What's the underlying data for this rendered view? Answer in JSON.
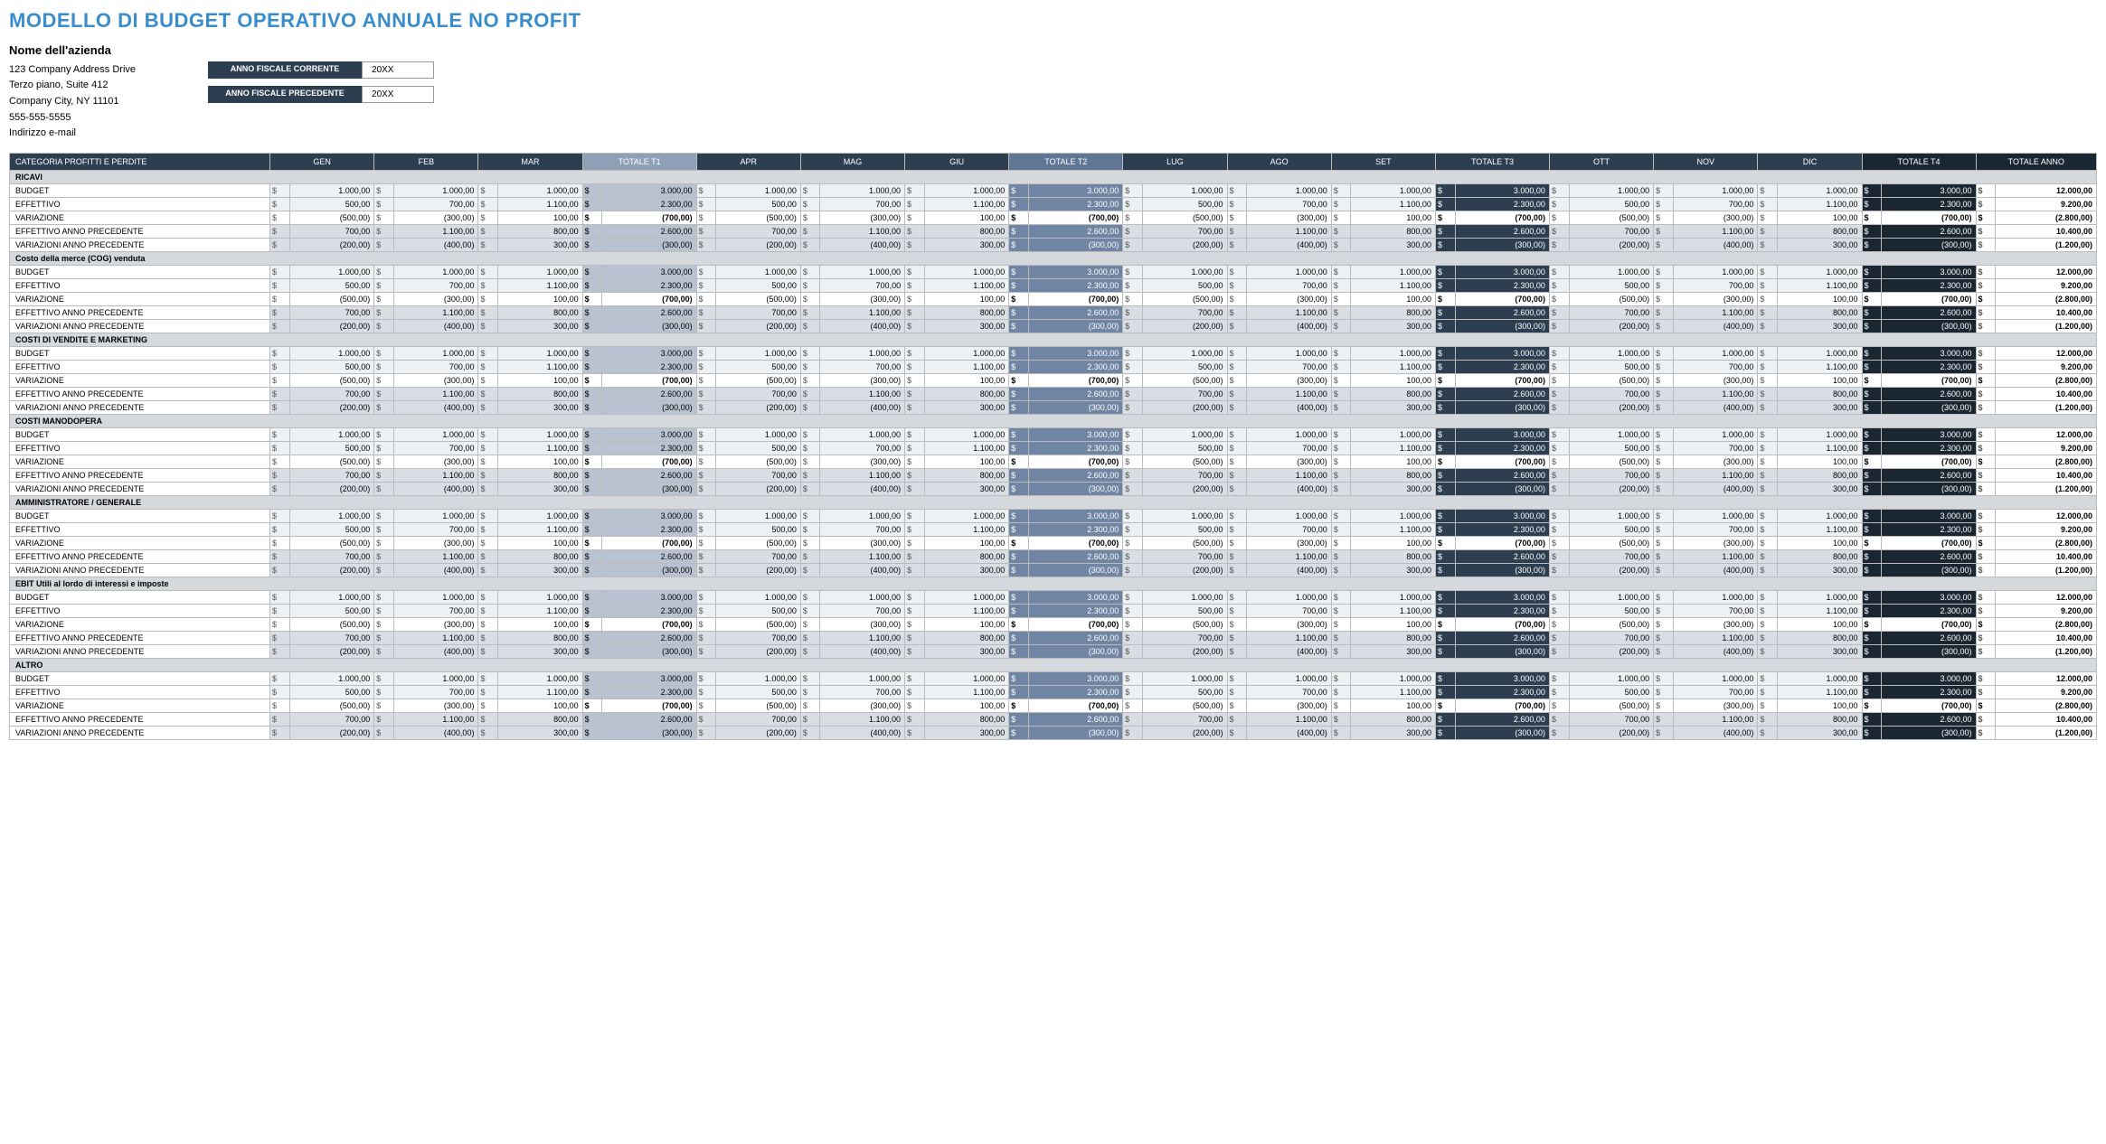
{
  "title": "MODELLO DI BUDGET OPERATIVO ANNUALE NO PROFIT",
  "company": {
    "name": "Nome dell'azienda",
    "addr1": "123 Company Address Drive",
    "addr2": "Terzo piano, Suite 412",
    "city": "Company City, NY 11101",
    "phone": "555-555-5555",
    "email": "Indirizzo e-mail"
  },
  "fiscal": {
    "current_label": "ANNO FISCALE CORRENTE",
    "current_value": "20XX",
    "prev_label": "ANNO FISCALE PRECEDENTE",
    "prev_value": "20XX"
  },
  "headers": {
    "category": "CATEGORIA PROFITTI E PERDITE",
    "months": [
      "GEN",
      "FEB",
      "MAR",
      "APR",
      "MAG",
      "GIU",
      "LUG",
      "AGO",
      "SET",
      "OTT",
      "NOV",
      "DIC"
    ],
    "quarters": [
      "TOTALE T1",
      "TOTALE T2",
      "TOTALE T3",
      "TOTALE T4"
    ],
    "year": "TOTALE ANNO"
  },
  "row_labels": {
    "budget": "BUDGET",
    "effettivo": "EFFETTIVO",
    "variazione": "VARIAZIONE",
    "eff_prev": "EFFETTIVO ANNO PRECEDENTE",
    "var_prev": "VARIAZIONI ANNO PRECEDENTE"
  },
  "sections": [
    "RICAVI",
    "Costo della merce (COG) venduta",
    "COSTI DI VENDITE E MARKETING",
    "COSTI MANODOPERA",
    "AMMINISTRATORE / GENERALE",
    "EBIT Utili al lordo di interessi e imposte",
    "ALTRO"
  ],
  "data": {
    "budget": {
      "m": [
        "1.000,00",
        "1.000,00",
        "1.000,00",
        "1.000,00",
        "1.000,00",
        "1.000,00",
        "1.000,00",
        "1.000,00",
        "1.000,00",
        "1.000,00",
        "1.000,00",
        "1.000,00"
      ],
      "q": [
        "3.000,00",
        "3.000,00",
        "3.000,00",
        "3.000,00"
      ],
      "y": "12.000,00"
    },
    "effettivo": {
      "m": [
        "500,00",
        "700,00",
        "1.100,00",
        "500,00",
        "700,00",
        "1.100,00",
        "500,00",
        "700,00",
        "1.100,00",
        "500,00",
        "700,00",
        "1.100,00"
      ],
      "q": [
        "2.300,00",
        "2.300,00",
        "2.300,00",
        "2.300,00"
      ],
      "y": "9.200,00"
    },
    "variazione": {
      "m": [
        "(500,00)",
        "(300,00)",
        "100,00",
        "(500,00)",
        "(300,00)",
        "100,00",
        "(500,00)",
        "(300,00)",
        "100,00",
        "(500,00)",
        "(300,00)",
        "100,00"
      ],
      "q": [
        "(700,00)",
        "(700,00)",
        "(700,00)",
        "(700,00)"
      ],
      "y": "(2.800,00)"
    },
    "eff_prev": {
      "m": [
        "700,00",
        "1.100,00",
        "800,00",
        "700,00",
        "1.100,00",
        "800,00",
        "700,00",
        "1.100,00",
        "800,00",
        "700,00",
        "1.100,00",
        "800,00"
      ],
      "q": [
        "2.600,00",
        "2.600,00",
        "2.600,00",
        "2.600,00"
      ],
      "y": "10.400,00"
    },
    "var_prev": {
      "m": [
        "(200,00)",
        "(400,00)",
        "300,00",
        "(200,00)",
        "(400,00)",
        "300,00",
        "(200,00)",
        "(400,00)",
        "300,00",
        "(200,00)",
        "(400,00)",
        "300,00"
      ],
      "q": [
        "(300,00)",
        "(300,00)",
        "(300,00)",
        "(300,00)"
      ],
      "y": "(1.200,00)"
    }
  },
  "currency": "$",
  "colors": {
    "title": "#3a8dcb",
    "header_dark": "#2c3e50",
    "q1": "#b8c2d0",
    "q2": "#6f85a3",
    "q3": "#2c3e50",
    "q4": "#1a2733",
    "section_bg": "#d5d9de",
    "light_row": "#eef1f4",
    "prev_row": "#d9dee5"
  }
}
